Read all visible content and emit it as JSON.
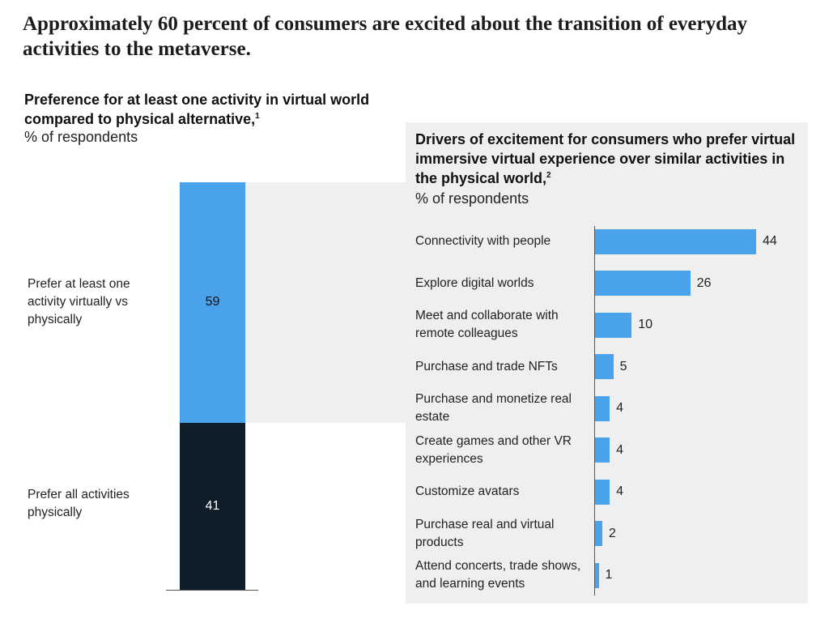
{
  "headline": "Approximately 60 percent of consumers are excited about the transition of everyday activities to the metaverse.",
  "colors": {
    "light_blue": "#4aa3ea",
    "dark_navy": "#0f1e2b",
    "panel_gray": "#efefef"
  },
  "chart_data": [
    {
      "type": "bar",
      "stacked": true,
      "title": "Preference for at least one activity in virtual world compared to physical alternative,",
      "title_footnote": "1",
      "unit_label": "% of respondents",
      "categories": [
        "Prefer at least one activity virtually vs physically",
        "Prefer all activities physically"
      ],
      "values": [
        59,
        41
      ],
      "value_labels": [
        "59",
        "41"
      ],
      "colors": [
        "#4aa3ea",
        "#0f1e2b"
      ],
      "ylim": [
        0,
        100
      ]
    },
    {
      "type": "bar",
      "orientation": "horizontal",
      "title": "Drivers of excitement for consumers who prefer virtual immersive virtual experience over similar activities in the physical world,",
      "title_footnote": "2",
      "unit_label": "% of respondents",
      "categories": [
        "Connectivity with people",
        "Explore digital worlds",
        "Meet and collaborate with remote colleagues",
        "Purchase and trade NFTs",
        "Purchase and monetize real estate",
        "Create games and other VR experiences",
        "Customize avatars",
        "Purchase real and virtual products",
        "Attend concerts, trade shows, and learning events"
      ],
      "values": [
        44,
        26,
        10,
        5,
        4,
        4,
        4,
        2,
        1
      ],
      "value_labels": [
        "44",
        "26",
        "10",
        "5",
        "4",
        "4",
        "4",
        "2",
        "1"
      ],
      "color": "#4aa3ea",
      "xlim": [
        0,
        44
      ]
    }
  ]
}
